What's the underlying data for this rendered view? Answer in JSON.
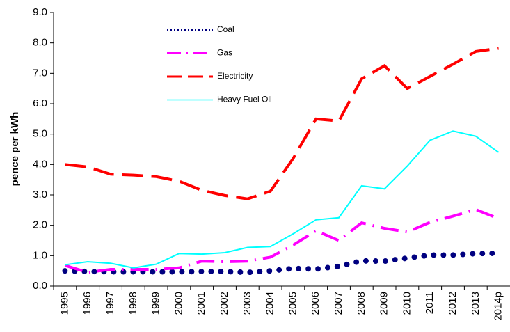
{
  "chart_data": {
    "type": "line",
    "ylabel": "pence per kWh",
    "categories": [
      "1995",
      "1996",
      "1997",
      "1998",
      "1999",
      "2000",
      "2001",
      "2002",
      "2003",
      "2004",
      "2005",
      "2006",
      "2007",
      "2008",
      "2009",
      "2010",
      "2011",
      "2012",
      "2013",
      "2014p"
    ],
    "series": [
      {
        "name": "Coal",
        "color": "#000080",
        "style": "dotted",
        "values": [
          0.5,
          0.48,
          0.47,
          0.47,
          0.47,
          0.47,
          0.48,
          0.48,
          0.45,
          0.5,
          0.58,
          0.56,
          0.65,
          0.83,
          0.82,
          0.92,
          1.02,
          1.02,
          1.07,
          1.08
        ]
      },
      {
        "name": "Gas",
        "color": "#ff00ff",
        "style": "dashdot",
        "values": [
          0.68,
          0.45,
          0.55,
          0.55,
          0.55,
          0.6,
          0.82,
          0.8,
          0.82,
          0.95,
          1.35,
          1.82,
          1.5,
          2.08,
          1.9,
          1.78,
          2.1,
          2.3,
          2.52,
          2.22
        ]
      },
      {
        "name": "Electricity",
        "color": "#ff0000",
        "style": "dashed",
        "values": [
          4.0,
          3.92,
          3.68,
          3.65,
          3.6,
          3.45,
          3.15,
          2.98,
          2.87,
          3.12,
          4.2,
          5.5,
          5.43,
          6.82,
          7.25,
          6.5,
          6.9,
          7.3,
          7.72,
          7.82
        ]
      },
      {
        "name": "Heavy Fuel Oil",
        "color": "#00ffff",
        "style": "solid",
        "values": [
          0.7,
          0.8,
          0.75,
          0.6,
          0.72,
          1.07,
          1.05,
          1.1,
          1.27,
          1.3,
          1.72,
          2.18,
          2.25,
          3.3,
          3.2,
          3.95,
          4.8,
          5.1,
          4.93,
          4.4
        ]
      }
    ],
    "ylim": [
      0,
      9
    ],
    "yticks": [
      {
        "value": 0,
        "label": "0.0"
      },
      {
        "value": 1,
        "label": "1.0"
      },
      {
        "value": 2,
        "label": "2.0"
      },
      {
        "value": 3,
        "label": "3.0"
      },
      {
        "value": 4,
        "label": "4.0"
      },
      {
        "value": 5,
        "label": "5.0"
      },
      {
        "value": 6,
        "label": "6.0"
      },
      {
        "value": 7,
        "label": "7.0"
      },
      {
        "value": 8,
        "label": "8.0"
      },
      {
        "value": 9,
        "label": "9.0"
      }
    ],
    "legend": "top"
  }
}
